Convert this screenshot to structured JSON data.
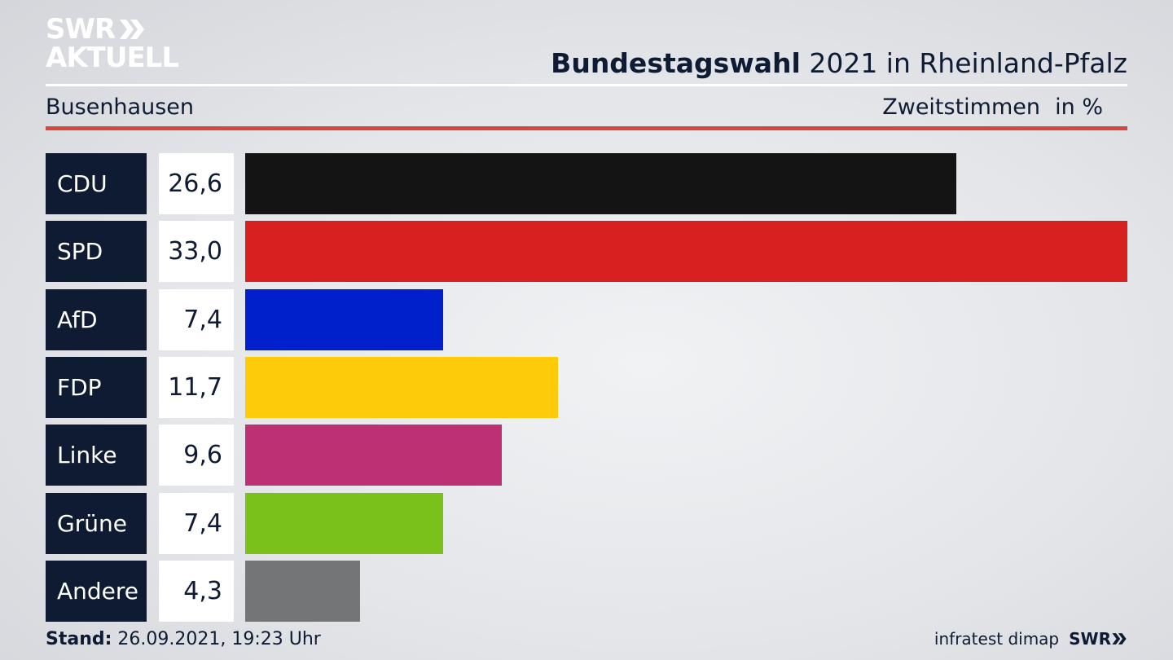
{
  "brand": {
    "logo_top": "SWR",
    "logo_bottom": "AKTUELL",
    "small_logo": "SWR",
    "chevron_icon": "double-chevron-right-icon"
  },
  "header": {
    "title_bold": "Bundestagswahl",
    "title_rest": "2021 in Rheinland-Pfalz",
    "region": "Busenhausen",
    "vote_type": "Zweitstimmen",
    "unit": "in %"
  },
  "colors": {
    "navy": "#0e1b33",
    "rule_red": "#d3473d"
  },
  "chart_data": {
    "type": "bar",
    "orientation": "horizontal",
    "categories": [
      "CDU",
      "SPD",
      "AfD",
      "FDP",
      "Linke",
      "Grüne",
      "Andere"
    ],
    "value_labels": [
      "26,6",
      "33,0",
      "7,4",
      "11,7",
      "9,6",
      "7,4",
      "4,3"
    ],
    "values": [
      26.6,
      33.0,
      7.4,
      11.7,
      9.6,
      7.4,
      4.3
    ],
    "colors": [
      "#141414",
      "#d82020",
      "#0020cc",
      "#fdcb0a",
      "#bd3074",
      "#7ac11c",
      "#747577"
    ],
    "xlim": [
      0,
      33.0
    ]
  },
  "footer": {
    "stand_label": "Stand:",
    "stand_value": "26.09.2021, 19:23 Uhr",
    "source": "infratest dimap"
  }
}
